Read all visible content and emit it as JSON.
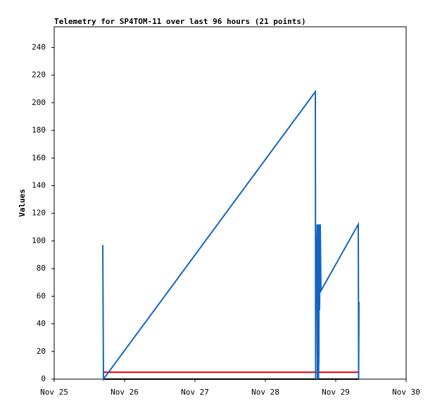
{
  "chart_data": {
    "type": "line",
    "title": "Telemetry for SP4TOM-11 over last 96 hours (21 points)",
    "y_label": "Values",
    "xlim": [
      25,
      30
    ],
    "xticks": [
      {
        "value": 25,
        "label": "Nov 25"
      },
      {
        "value": 26,
        "label": "Nov 26"
      },
      {
        "value": 27,
        "label": "Nov 27"
      },
      {
        "value": 28,
        "label": "Nov 28"
      },
      {
        "value": 29,
        "label": "Nov 29"
      },
      {
        "value": 30,
        "label": "Nov 30"
      }
    ],
    "ylim": [
      0,
      255
    ],
    "yticks": [
      0,
      20,
      40,
      60,
      80,
      100,
      120,
      140,
      160,
      180,
      200,
      220,
      240
    ],
    "series": [
      {
        "color": "#1565c0",
        "x": [
          25.69,
          25.7,
          28.71,
          28.714,
          28.718,
          28.722,
          28.726,
          28.73,
          28.735,
          28.74,
          28.745,
          28.75,
          28.755,
          28.76,
          28.765,
          28.77,
          28.78,
          28.79,
          29.32,
          29.325,
          29.33
        ],
        "values": [
          97,
          0,
          208,
          0,
          60,
          104,
          72,
          88,
          112,
          0,
          40,
          112,
          0,
          16,
          112,
          50,
          112,
          64,
          112,
          0,
          56
        ]
      },
      {
        "color": "#e00000",
        "x": [
          25.69,
          29.33
        ],
        "values": [
          5,
          5
        ]
      },
      {
        "color": "#000000",
        "x": [
          25.69,
          29.33
        ],
        "values": [
          0,
          0
        ]
      }
    ]
  }
}
